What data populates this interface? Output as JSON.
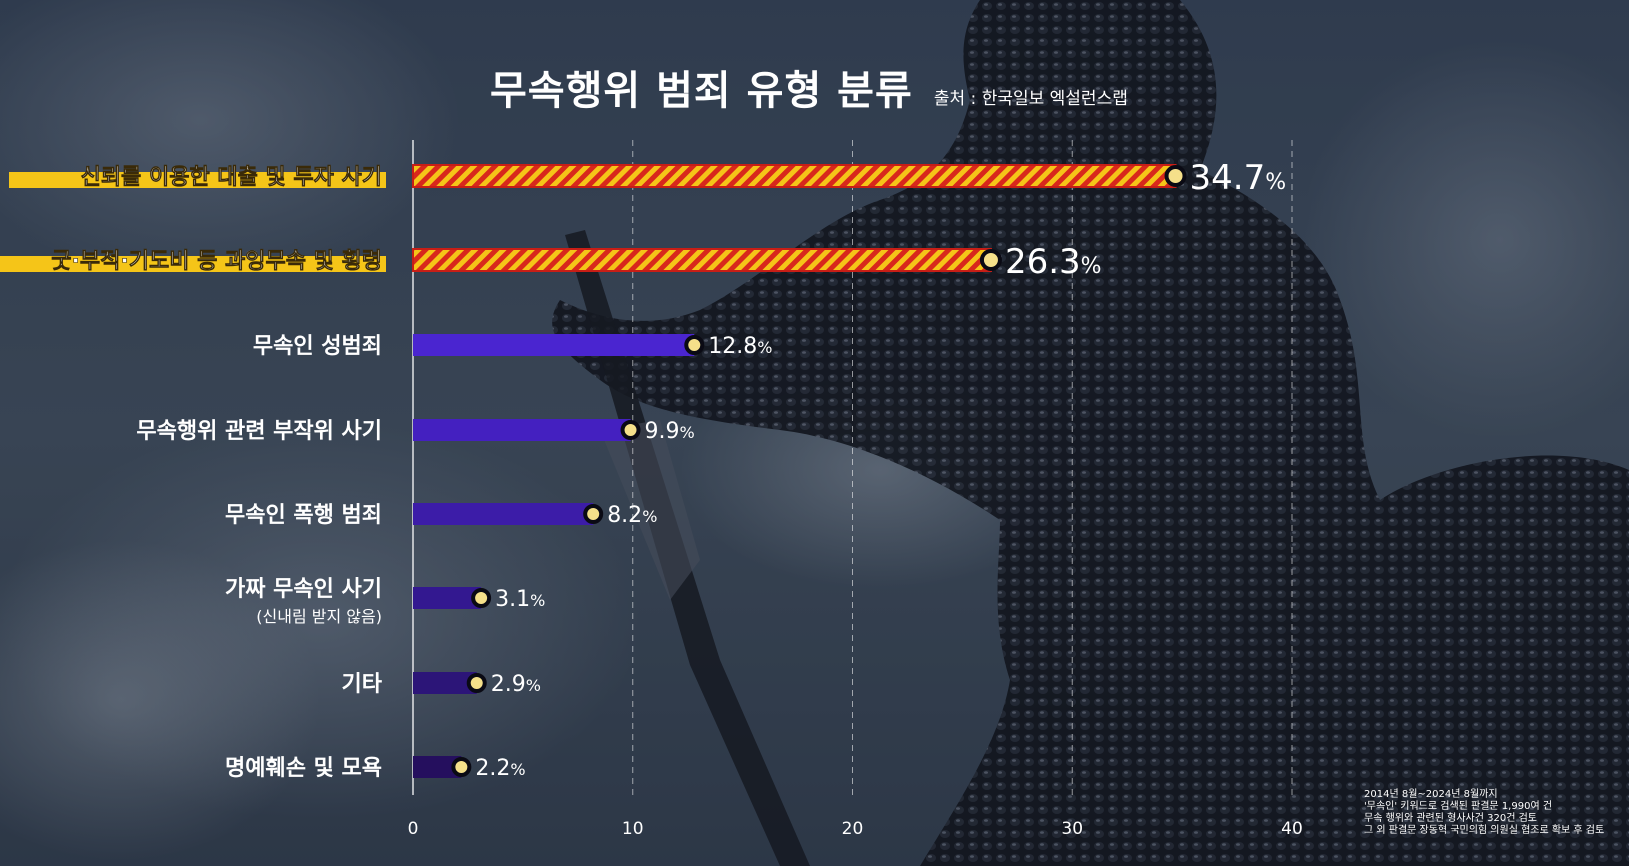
{
  "title": "무속행위 범죄 유형 분류",
  "source": "출처 : 한국일보 엑설런스랩",
  "footnote": [
    "2014년 8월~2024년 8월까지",
    "'무속인' 키워드로 검색된 판결문 1,990여 건",
    "무속 행위와 관련된 형사사건 320건 검토",
    "그 외 판결문 장동혁 국민의힘 의원실 협조로 확보 후 검토"
  ],
  "colors": {
    "highlight_label_bg": "#f5c518",
    "stripe_red": "#d8281c",
    "stripe_yellow": "#f5c518",
    "bar_purple_shades": [
      "#4a25d0",
      "#4420c0",
      "#3c1ca8",
      "#331890",
      "#2c1578",
      "#250f5e"
    ],
    "marker_fill": "#f5e08a",
    "marker_stroke": "#0a0a14",
    "grid": "#ffffff"
  },
  "chart_data": {
    "type": "bar",
    "orientation": "horizontal",
    "title": "무속행위 범죄 유형 분류",
    "xlim": [
      0,
      40
    ],
    "xticks": [
      "0",
      "10",
      "20",
      "30",
      "40"
    ],
    "grid": true,
    "value_unit": "%",
    "categories": [
      {
        "label": "신뢰를 이용한 대출 및 투자 사기",
        "sublabel": "",
        "value": 34.7,
        "display": "34.7",
        "highlight": true
      },
      {
        "label": "굿·부적·기도비 등 과잉무속 및 횡령",
        "sublabel": "",
        "value": 26.3,
        "display": "26.3",
        "highlight": true
      },
      {
        "label": "무속인 성범죄",
        "sublabel": "",
        "value": 12.8,
        "display": "12.8",
        "highlight": false
      },
      {
        "label": "무속행위 관련 부작위 사기",
        "sublabel": "",
        "value": 9.9,
        "display": "9.9",
        "highlight": false
      },
      {
        "label": "무속인 폭행 범죄",
        "sublabel": "",
        "value": 8.2,
        "display": "8.2",
        "highlight": false
      },
      {
        "label": "가짜 무속인 사기",
        "sublabel": "(신내림 받지 않음)",
        "value": 3.1,
        "display": "3.1",
        "highlight": false
      },
      {
        "label": "기타",
        "sublabel": "",
        "value": 2.9,
        "display": "2.9",
        "highlight": false
      },
      {
        "label": "명예훼손 및 모욕",
        "sublabel": "",
        "value": 2.2,
        "display": "2.2",
        "highlight": false
      }
    ]
  }
}
